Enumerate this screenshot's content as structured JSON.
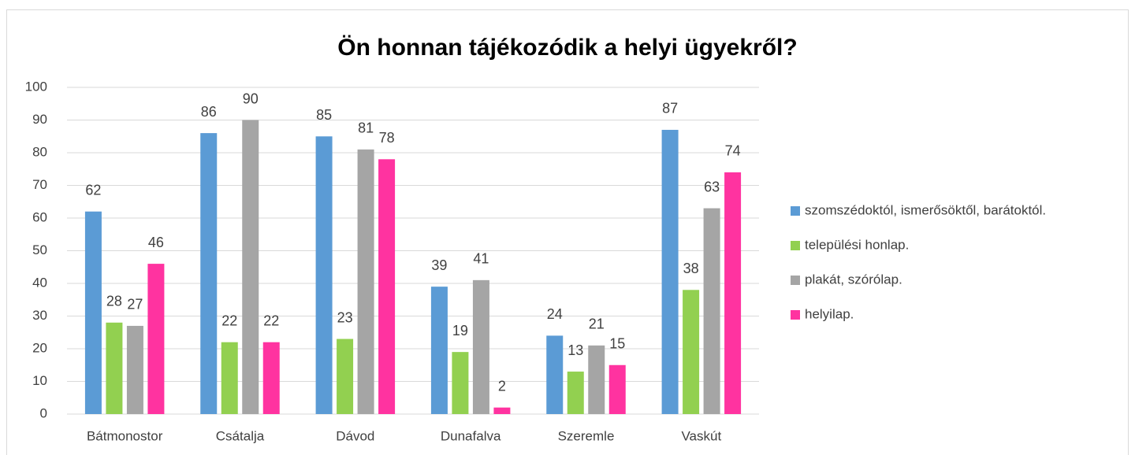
{
  "chart_data": {
    "type": "bar",
    "title": "Ön honnan tájékozódik a helyi ügyekről?",
    "categories": [
      "Bátmonostor",
      "Csátalja",
      "Dávod",
      "Dunafalva",
      "Szeremle",
      "Vaskút"
    ],
    "series": [
      {
        "name": "szomszédoktól, ismerősöktől, barátoktól.",
        "color": "#5b9bd5",
        "values": [
          62,
          86,
          85,
          39,
          24,
          87
        ]
      },
      {
        "name": "települési honlap.",
        "color": "#92d050",
        "values": [
          28,
          22,
          23,
          19,
          13,
          38
        ]
      },
      {
        "name": "plakát, szórólap.",
        "color": "#a5a5a5",
        "values": [
          27,
          90,
          81,
          41,
          21,
          63
        ]
      },
      {
        "name": "helyilap.",
        "color": "#ff33a0",
        "values": [
          46,
          22,
          78,
          2,
          15,
          74
        ]
      }
    ],
    "ylim": [
      0,
      100
    ],
    "yticks": [
      0,
      10,
      20,
      30,
      40,
      50,
      60,
      70,
      80,
      90,
      100
    ],
    "grid": true,
    "legend": "right"
  }
}
